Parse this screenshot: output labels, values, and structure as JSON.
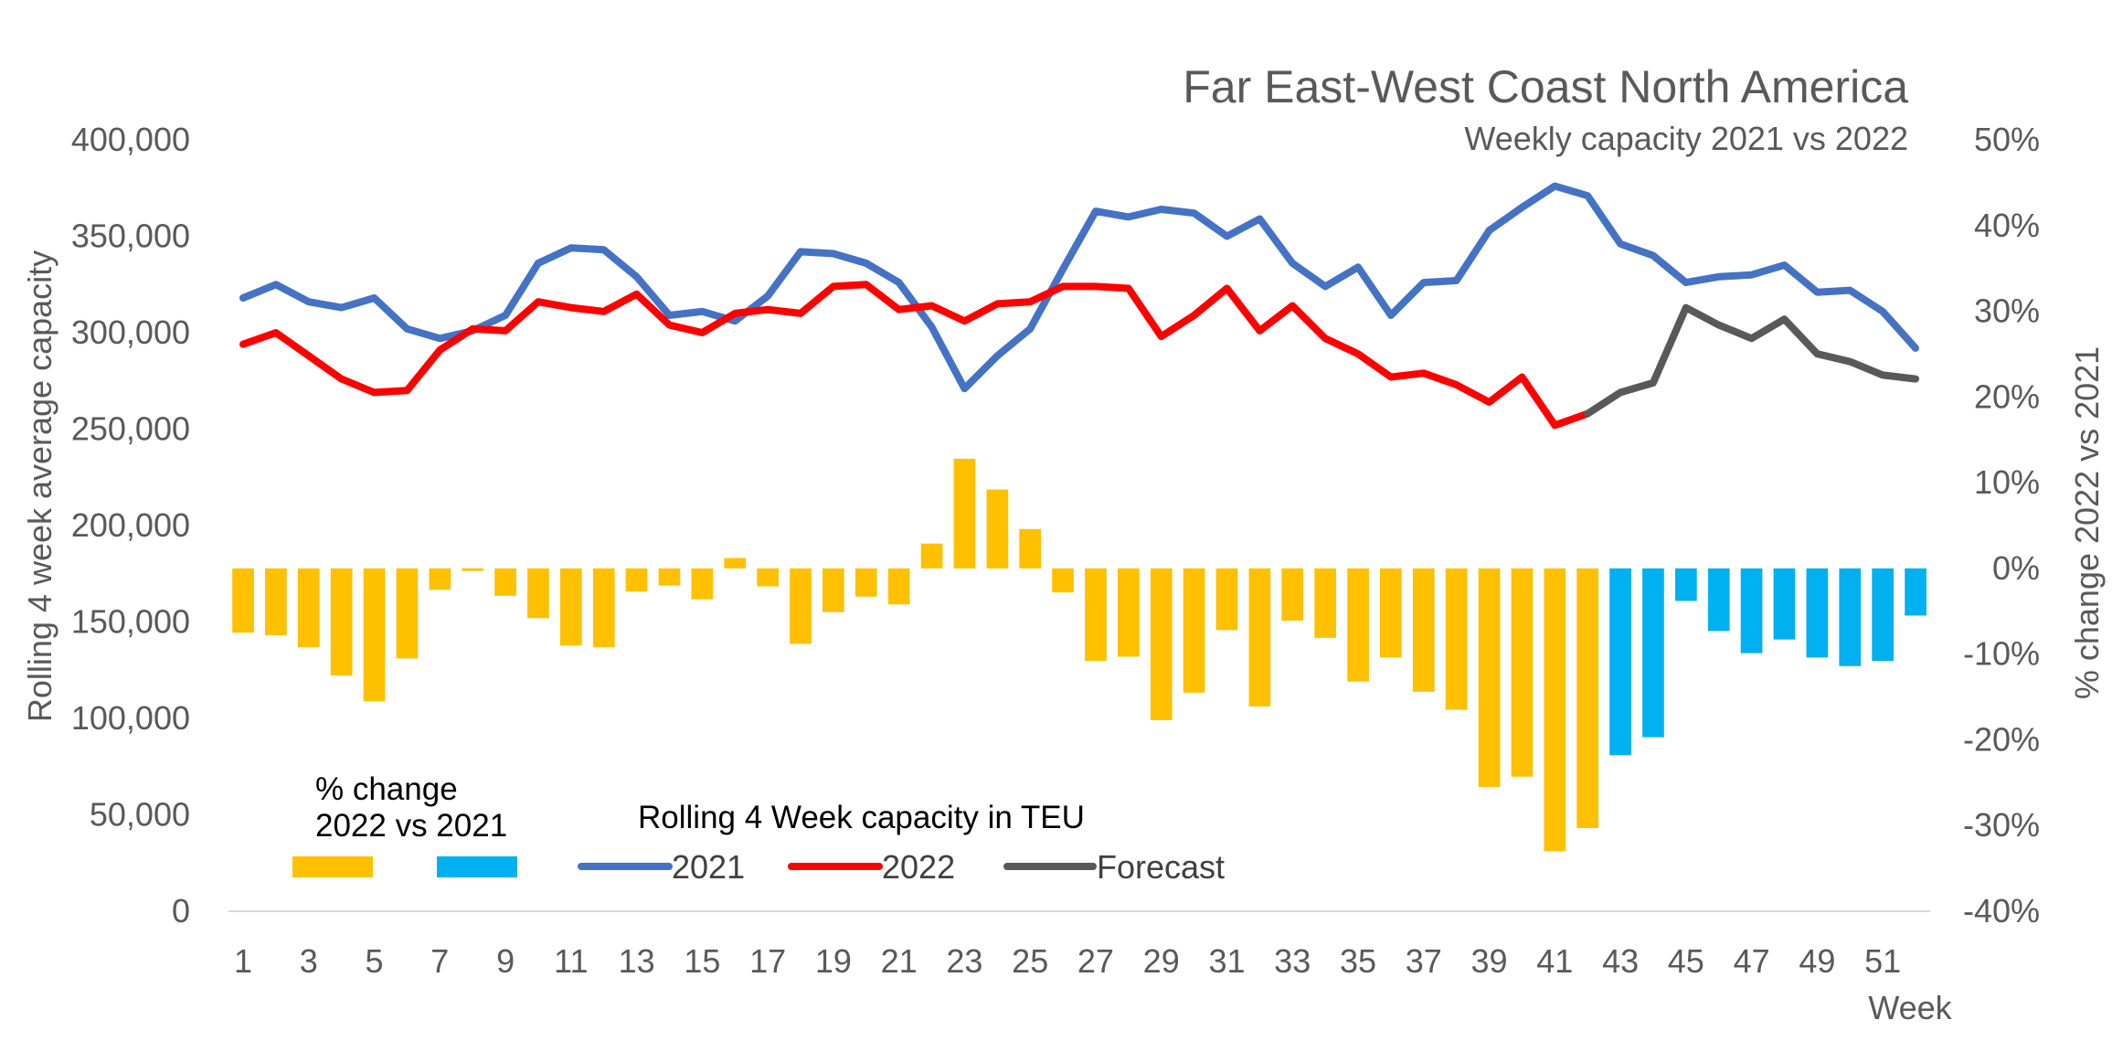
{
  "chart_data": {
    "type": "bar+line",
    "title": "Far East-West Coast North America",
    "subtitle": "Weekly capacity 2021 vs 2022",
    "ylabel_left": "Rolling 4 week average capacity",
    "ylabel_right": "% change 2022 vs 2021",
    "xlabel": "Week",
    "ylim_left": [
      0,
      400000
    ],
    "ylim_right": [
      -40,
      50
    ],
    "yticks_left": [
      "400,000",
      "350,000",
      "300,000",
      "250,000",
      "200,000",
      "150,000",
      "100,000",
      "50,000",
      "0"
    ],
    "yticks_right": [
      "50%",
      "40%",
      "30%",
      "20%",
      "10%",
      "0%",
      "-10%",
      "-20%",
      "-30%",
      "-40%"
    ],
    "xticks": [
      "1",
      "3",
      "5",
      "7",
      "9",
      "11",
      "13",
      "15",
      "17",
      "19",
      "21",
      "23",
      "25",
      "27",
      "29",
      "31",
      "33",
      "35",
      "37",
      "39",
      "41",
      "43",
      "45",
      "47",
      "49",
      "51"
    ],
    "weeks": [
      1,
      2,
      3,
      4,
      5,
      6,
      7,
      8,
      9,
      10,
      11,
      12,
      13,
      14,
      15,
      16,
      17,
      18,
      19,
      20,
      21,
      22,
      23,
      24,
      25,
      26,
      27,
      28,
      29,
      30,
      31,
      32,
      33,
      34,
      35,
      36,
      37,
      38,
      39,
      40,
      41,
      42,
      43,
      44,
      45,
      46,
      47,
      48,
      49,
      50,
      51,
      52
    ],
    "pct_change": [
      -7.5,
      -7.8,
      -9.2,
      -12.5,
      -15.5,
      -10.5,
      -2.5,
      -0.3,
      -3.2,
      -5.8,
      -9.0,
      -9.2,
      -2.7,
      -2.0,
      -3.6,
      1.2,
      -2.1,
      -8.8,
      -5.1,
      -3.3,
      -4.2,
      2.9,
      12.8,
      9.2,
      4.6,
      -2.8,
      -10.8,
      -10.3,
      -17.7,
      -14.5,
      -7.2,
      -16.1,
      -6.1,
      -8.1,
      -13.2,
      -10.4,
      -14.4,
      -16.5,
      -25.5,
      -24.3,
      -33.0,
      -30.3,
      -21.8,
      -19.7,
      -3.8,
      -7.3,
      -9.9,
      -8.3,
      -10.4,
      -11.4,
      -10.8,
      -5.5
    ],
    "pct_colors": {
      "actual": "#FFC000",
      "forecast": "#00B0F0"
    },
    "actual_weeks_through": 42,
    "series": [
      {
        "name": "2021",
        "color": "#4472C4",
        "values": [
          318000,
          325000,
          316000,
          313000,
          318000,
          302000,
          297000,
          301000,
          309000,
          336000,
          344000,
          343000,
          329000,
          309000,
          311000,
          306000,
          319000,
          342000,
          341000,
          336000,
          326000,
          303000,
          271000,
          288000,
          302000,
          333000,
          363000,
          360000,
          364000,
          362000,
          350000,
          359000,
          336000,
          324000,
          334000,
          309000,
          326000,
          327000,
          353000,
          365000,
          376000,
          371000,
          346000,
          340000,
          326000,
          329000,
          330000,
          335000,
          321000,
          322000,
          311000,
          292000
        ]
      },
      {
        "name": "2022",
        "color": "#FF0000",
        "values": [
          294000,
          300000,
          288000,
          276000,
          269000,
          270000,
          291000,
          302000,
          301000,
          316000,
          313000,
          311000,
          320000,
          304000,
          300000,
          310000,
          312000,
          310000,
          324000,
          325000,
          312000,
          314000,
          306000,
          315000,
          316000,
          324000,
          324000,
          323000,
          298000,
          309000,
          323000,
          301000,
          314000,
          297000,
          289000,
          277000,
          279000,
          273000,
          264000,
          277000,
          252000,
          258000
        ]
      },
      {
        "name": "Forecast",
        "color": "#595959",
        "values_from_week": 42,
        "values": [
          258000,
          269000,
          274000,
          313000,
          304000,
          297000,
          307000,
          289000,
          285000,
          278000,
          276000
        ]
      }
    ],
    "legend": {
      "bar_title_line1": "% change",
      "bar_title_line2": "2022 vs 2021",
      "line_title": "Rolling 4 Week capacity in TEU",
      "entries": [
        "2021",
        "2022",
        "Forecast"
      ]
    }
  }
}
